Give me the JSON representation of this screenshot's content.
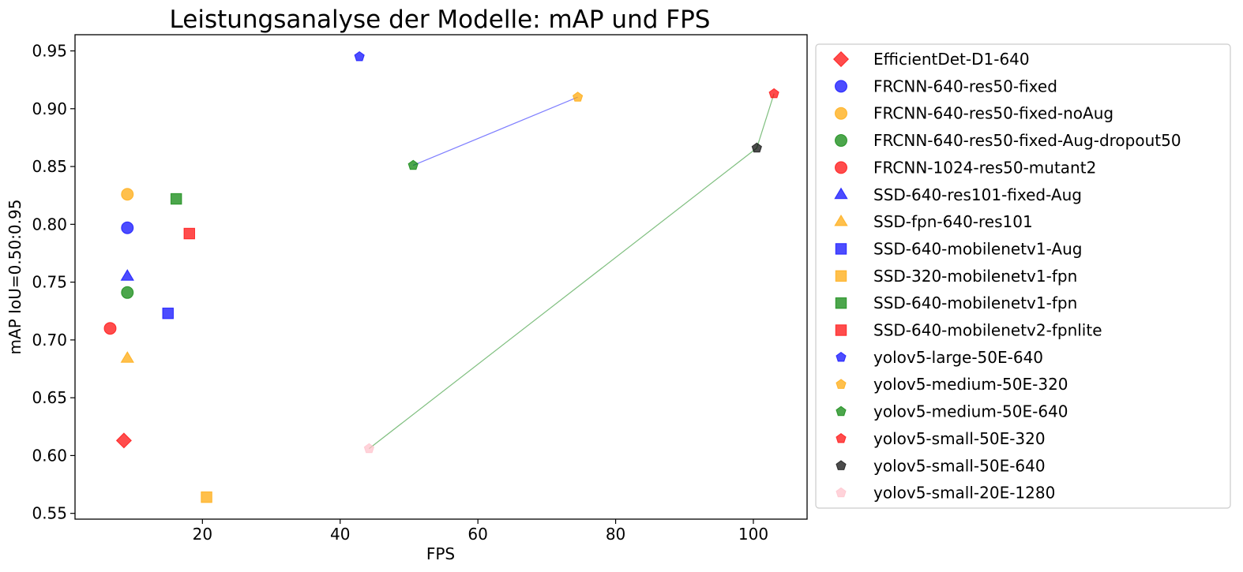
{
  "chart_data": {
    "type": "scatter",
    "title": "Leistungsanalyse der Modelle: mAP und FPS",
    "xlabel": "FPS",
    "ylabel": "mAP IoU=0.50:0.95",
    "xlim": [
      1.5,
      107.8
    ],
    "ylim": [
      0.545,
      0.964
    ],
    "xticks": [
      20,
      40,
      60,
      80,
      100
    ],
    "yticks": [
      0.55,
      0.6,
      0.65,
      0.7,
      0.75,
      0.8,
      0.85,
      0.9,
      0.95
    ],
    "grid": false,
    "legend_position": "outside-right",
    "series": [
      {
        "name": "EfficientDet-D1-640",
        "marker": "diamond",
        "color": "#ff0000",
        "x": 8.6,
        "y": 0.613
      },
      {
        "name": "FRCNN-640-res50-fixed",
        "marker": "circle",
        "color": "#0000ff",
        "x": 9.1,
        "y": 0.797
      },
      {
        "name": "FRCNN-640-res50-fixed-noAug",
        "marker": "circle",
        "color": "#ffa500",
        "x": 9.1,
        "y": 0.826
      },
      {
        "name": "FRCNN-640-res50-fixed-Aug-dropout50",
        "marker": "circle",
        "color": "#008000",
        "x": 9.1,
        "y": 0.741
      },
      {
        "name": "FRCNN-1024-res50-mutant2",
        "marker": "circle",
        "color": "#ff0000",
        "x": 6.6,
        "y": 0.71
      },
      {
        "name": "SSD-640-res101-fixed-Aug",
        "marker": "triangle",
        "color": "#0000ff",
        "x": 9.1,
        "y": 0.755
      },
      {
        "name": "SSD-fpn-640-res101",
        "marker": "triangle",
        "color": "#ffa500",
        "x": 9.1,
        "y": 0.684
      },
      {
        "name": "SSD-640-mobilenetv1-Aug",
        "marker": "square",
        "color": "#0000ff",
        "x": 15.0,
        "y": 0.723
      },
      {
        "name": "SSD-320-mobilenetv1-fpn",
        "marker": "square",
        "color": "#ffa500",
        "x": 20.6,
        "y": 0.564
      },
      {
        "name": "SSD-640-mobilenetv1-fpn",
        "marker": "square",
        "color": "#008000",
        "x": 16.2,
        "y": 0.822
      },
      {
        "name": "SSD-640-mobilenetv2-fpnlite",
        "marker": "square",
        "color": "#ff0000",
        "x": 18.1,
        "y": 0.792
      },
      {
        "name": "yolov5-large-50E-640",
        "marker": "pentagon",
        "color": "#0000ff",
        "x": 42.8,
        "y": 0.945
      },
      {
        "name": "yolov5-medium-50E-320",
        "marker": "pentagon",
        "color": "#ffa500",
        "x": 74.5,
        "y": 0.91
      },
      {
        "name": "yolov5-medium-50E-640",
        "marker": "pentagon",
        "color": "#008000",
        "x": 50.6,
        "y": 0.851
      },
      {
        "name": "yolov5-small-50E-320",
        "marker": "pentagon",
        "color": "#ff0000",
        "x": 103.0,
        "y": 0.913
      },
      {
        "name": "yolov5-small-50E-640",
        "marker": "pentagon",
        "color": "#000000",
        "x": 100.5,
        "y": 0.866
      },
      {
        "name": "yolov5-small-20E-1280",
        "marker": "pentagon",
        "color": "#ffc0cb",
        "x": 44.2,
        "y": 0.606
      }
    ],
    "connecting_lines": [
      {
        "from": "yolov5-medium-50E-640",
        "to": "yolov5-medium-50E-320",
        "color": "#0000ff"
      },
      {
        "from": "yolov5-small-20E-1280",
        "to": "yolov5-small-50E-640",
        "color": "#008000"
      },
      {
        "from": "yolov5-small-50E-640",
        "to": "yolov5-small-50E-320",
        "color": "#008000"
      }
    ]
  }
}
